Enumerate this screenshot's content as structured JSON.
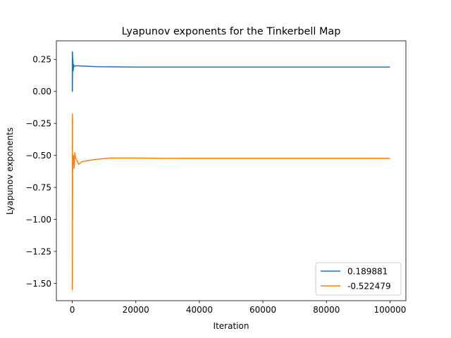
{
  "chart_data": {
    "type": "line",
    "title": "Lyapunov exponents for the Tinkerbell Map",
    "xlabel": "Iteration",
    "ylabel": "Lyapunov exponents",
    "xlim": [
      -5000,
      105000
    ],
    "ylim": [
      -1.635,
      0.395
    ],
    "xticks": [
      0,
      20000,
      40000,
      60000,
      80000,
      100000
    ],
    "xtick_labels": [
      "0",
      "20000",
      "40000",
      "60000",
      "80000",
      "100000"
    ],
    "yticks": [
      0.25,
      0.0,
      -0.25,
      -0.5,
      -0.75,
      -1.0,
      -1.25,
      -1.5
    ],
    "ytick_labels": [
      "0.25",
      "0.00",
      "−0.25",
      "−0.50",
      "−0.75",
      "−1.00",
      "−1.25",
      "−1.50"
    ],
    "grid": false,
    "legend": "lower-right",
    "series": [
      {
        "name": "0.189881",
        "color": "#1f77b4",
        "x": [
          0,
          20,
          60,
          100,
          150,
          200,
          300,
          400,
          500,
          700,
          1000,
          1500,
          2000,
          3000,
          5000,
          8000,
          12000,
          20000,
          30000,
          40000,
          60000,
          80000,
          100000
        ],
        "y": [
          0.0,
          0.31,
          0.0,
          0.3,
          0.17,
          0.26,
          0.16,
          0.21,
          0.19,
          0.2,
          0.2,
          0.2,
          0.2,
          0.198,
          0.196,
          0.193,
          0.192,
          0.19,
          0.19,
          0.19,
          0.19,
          0.19,
          0.189881
        ]
      },
      {
        "name": "-0.522479",
        "color": "#ff7f0e",
        "x": [
          0,
          20,
          50,
          80,
          120,
          160,
          200,
          300,
          400,
          600,
          800,
          1000,
          1500,
          2000,
          3000,
          5000,
          8000,
          12000,
          20000,
          30000,
          40000,
          60000,
          80000,
          100000
        ],
        "y": [
          -1.0,
          -1.55,
          -0.18,
          -1.0,
          -0.55,
          -0.62,
          -0.5,
          -0.57,
          -0.5,
          -0.6,
          -0.48,
          -0.52,
          -0.54,
          -0.57,
          -0.55,
          -0.54,
          -0.53,
          -0.52,
          -0.52,
          -0.523,
          -0.522,
          -0.522,
          -0.522,
          -0.522479
        ]
      }
    ]
  }
}
